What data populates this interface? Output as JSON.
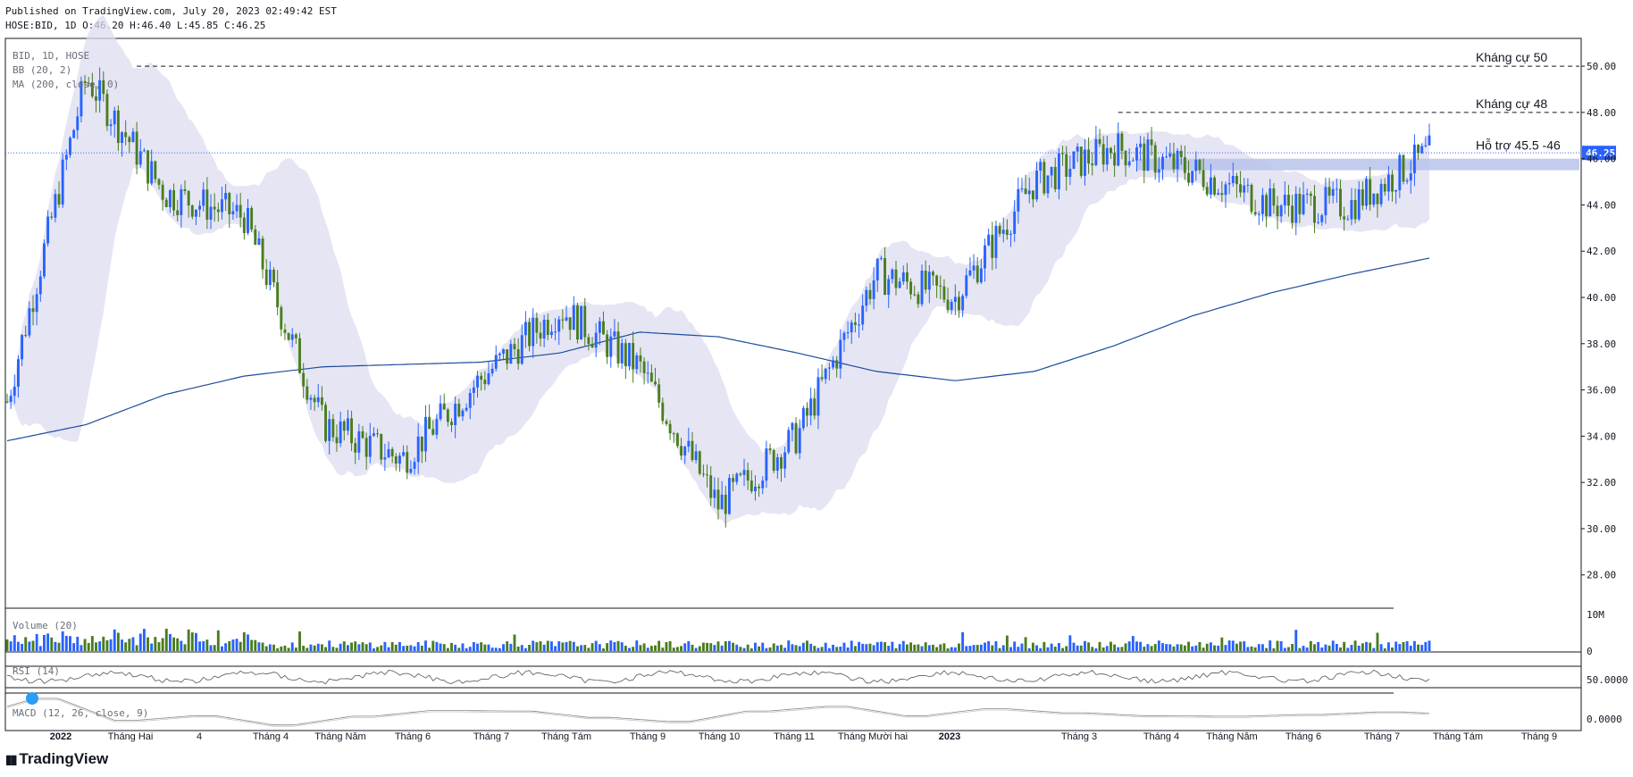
{
  "header": {
    "published": "Published on TradingView.com, July 20, 2023 02:49:42 EST",
    "ohlc": "HOSE:BID, 1D O:46.20 H:46.40 L:45.85 C:46.25"
  },
  "legend": {
    "symbol": "BID, 1D, HOSE",
    "bb": "BB (20, 2)",
    "ma": "MA (200, close, 0)",
    "volume": "Volume (20)",
    "rsi": "RSI (14)",
    "macd": "MACD (12, 26, close, 9)"
  },
  "branding": {
    "logo_text": "TradingView"
  },
  "colors": {
    "up": "#2962ff",
    "down": "#4a7d1e",
    "band": "#dcdcf0",
    "ma": "#1d4a9c",
    "support_zone": "#b9c3ea",
    "last_price_bg": "#2962ff"
  },
  "chart_data": {
    "type": "candlestick",
    "symbol": "HOSE:BID",
    "interval": "1D",
    "price_axis": {
      "ticks": [
        28.0,
        30.0,
        32.0,
        34.0,
        36.0,
        38.0,
        40.0,
        42.0,
        44.0,
        46.0,
        48.0,
        50.0
      ],
      "tick_labels": [
        "28.00",
        "30.00",
        "32.00",
        "34.00",
        "36.00",
        "38.00",
        "40.00",
        "42.00",
        "44.00",
        "46.00",
        "48.00",
        "50.00"
      ],
      "ylim": [
        26.6,
        51.2
      ]
    },
    "last_price": {
      "value": 46.25,
      "label": "46.25"
    },
    "x_axis_labels": [
      "2022",
      "Tháng Hai",
      "4",
      "Tháng 4",
      "Tháng Năm",
      "Tháng 6",
      "Tháng 7",
      "Tháng Tám",
      "Tháng 9",
      "Tháng 10",
      "Tháng 11",
      "Tháng Mười hai",
      "2023",
      "Tháng 3",
      "Tháng 4",
      "Tháng Năm",
      "Tháng 6",
      "Tháng 7",
      "Tháng Tám",
      "Tháng 9"
    ],
    "price_path_approx": {
      "note_months": [
        "2022-01",
        "2022-02",
        "2022-03",
        "2022-04",
        "2022-05",
        "2022-06",
        "2022-07",
        "2022-08",
        "2022-09",
        "2022-10",
        "2022-11",
        "2022-12",
        "2023-01",
        "2023-02",
        "2023-03",
        "2023-04",
        "2023-05",
        "2023-06",
        "2023-07"
      ],
      "close": [
        35.5,
        49.5,
        44.5,
        43.5,
        34.5,
        33.0,
        36.5,
        39.5,
        37.0,
        31.0,
        34.0,
        41.0,
        40.0,
        45.0,
        46.5,
        45.5,
        44.0,
        44.0,
        46.25
      ]
    },
    "ma200_approx": [
      33.8,
      34.5,
      35.8,
      36.6,
      37.0,
      37.1,
      37.2,
      37.6,
      38.5,
      38.3,
      37.6,
      36.8,
      36.4,
      36.8,
      37.9,
      39.2,
      40.2,
      41.0,
      41.7
    ],
    "annotations": [
      {
        "label": "Kháng cự 50",
        "value": 50.0
      },
      {
        "label": "Kháng cự 48",
        "value": 48.0
      },
      {
        "label": "Hỗ trợ 45.5 -46",
        "range": [
          45.5,
          46.0
        ]
      }
    ],
    "volume_axis": {
      "tick_labels": [
        "10M",
        "0"
      ]
    },
    "rsi_axis": {
      "tick_labels": [
        "50.0000"
      ]
    },
    "macd_axis": {
      "tick_labels": [
        "0.0000"
      ]
    }
  }
}
